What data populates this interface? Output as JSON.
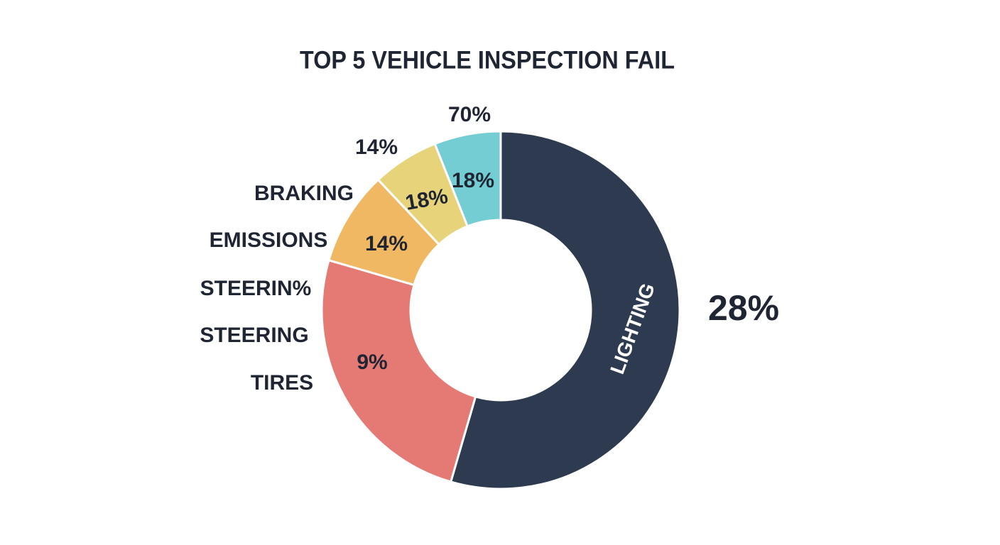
{
  "chart_data": {
    "type": "pie",
    "donut": true,
    "title": "TOP 5 VEHICLE INSPECTION FAIL",
    "categories": [
      "LIGHTING",
      null,
      null,
      null,
      null
    ],
    "values": [
      54.5,
      25,
      8.5,
      6,
      6
    ],
    "colors": [
      "#2e3a4f",
      "#e57a74",
      "#f0b862",
      "#e6d37a",
      "#74cdd3"
    ],
    "annotations": [
      "70%",
      "14%",
      "BRAKING",
      "EMISSIONS",
      "STEERIN%",
      "STEERING",
      "TIRES",
      "28%",
      "18%",
      "18%",
      "14%",
      "9%"
    ]
  }
}
